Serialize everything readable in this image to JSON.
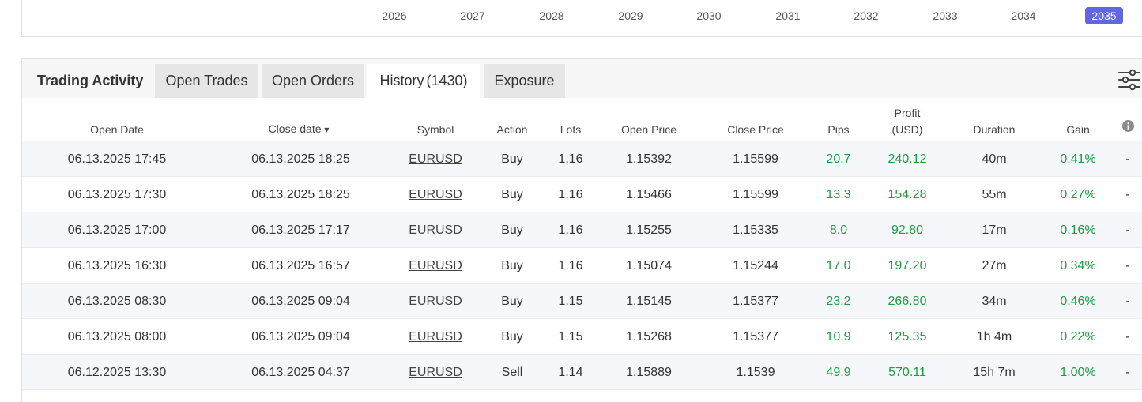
{
  "years": [
    "2026",
    "2027",
    "2028",
    "2029",
    "2030",
    "2031",
    "2032",
    "2033",
    "2034",
    "2035"
  ],
  "active_year": "2035",
  "panel": {
    "title": "Trading Activity",
    "tabs": [
      {
        "label": "Open Trades",
        "count": ""
      },
      {
        "label": "Open Orders",
        "count": ""
      },
      {
        "label": "History",
        "count": "(1430)"
      },
      {
        "label": "Exposure",
        "count": ""
      }
    ],
    "active_tab": "History"
  },
  "table": {
    "headers": {
      "open_date": "Open Date",
      "close_date": "Close date",
      "sort_arrow": "▾",
      "symbol": "Symbol",
      "action": "Action",
      "lots": "Lots",
      "open_price": "Open Price",
      "close_price": "Close Price",
      "pips": "Pips",
      "profit_line1": "Profit",
      "profit_line2": "(USD)",
      "duration": "Duration",
      "gain": "Gain"
    },
    "rows": [
      {
        "open_date": "06.13.2025 17:45",
        "close_date": "06.13.2025 18:25",
        "symbol": "EURUSD",
        "action": "Buy",
        "lots": "1.16",
        "open_price": "1.15392",
        "close_price": "1.15599",
        "pips": "20.7",
        "profit": "240.12",
        "duration": "40m",
        "gain": "0.41%",
        "extra": "-"
      },
      {
        "open_date": "06.13.2025 17:30",
        "close_date": "06.13.2025 18:25",
        "symbol": "EURUSD",
        "action": "Buy",
        "lots": "1.16",
        "open_price": "1.15466",
        "close_price": "1.15599",
        "pips": "13.3",
        "profit": "154.28",
        "duration": "55m",
        "gain": "0.27%",
        "extra": "-"
      },
      {
        "open_date": "06.13.2025 17:00",
        "close_date": "06.13.2025 17:17",
        "symbol": "EURUSD",
        "action": "Buy",
        "lots": "1.16",
        "open_price": "1.15255",
        "close_price": "1.15335",
        "pips": "8.0",
        "profit": "92.80",
        "duration": "17m",
        "gain": "0.16%",
        "extra": "-"
      },
      {
        "open_date": "06.13.2025 16:30",
        "close_date": "06.13.2025 16:57",
        "symbol": "EURUSD",
        "action": "Buy",
        "lots": "1.16",
        "open_price": "1.15074",
        "close_price": "1.15244",
        "pips": "17.0",
        "profit": "197.20",
        "duration": "27m",
        "gain": "0.34%",
        "extra": "-"
      },
      {
        "open_date": "06.13.2025 08:30",
        "close_date": "06.13.2025 09:04",
        "symbol": "EURUSD",
        "action": "Buy",
        "lots": "1.15",
        "open_price": "1.15145",
        "close_price": "1.15377",
        "pips": "23.2",
        "profit": "266.80",
        "duration": "34m",
        "gain": "0.46%",
        "extra": "-"
      },
      {
        "open_date": "06.13.2025 08:00",
        "close_date": "06.13.2025 09:04",
        "symbol": "EURUSD",
        "action": "Buy",
        "lots": "1.15",
        "open_price": "1.15268",
        "close_price": "1.15377",
        "pips": "10.9",
        "profit": "125.35",
        "duration": "1h 4m",
        "gain": "0.22%",
        "extra": "-"
      },
      {
        "open_date": "06.12.2025 13:30",
        "close_date": "06.13.2025 04:37",
        "symbol": "EURUSD",
        "action": "Sell",
        "lots": "1.14",
        "open_price": "1.15889",
        "close_price": "1.1539",
        "pips": "49.9",
        "profit": "570.11",
        "duration": "15h 7m",
        "gain": "1.00%",
        "extra": "-"
      }
    ]
  },
  "colors": {
    "accent": "#6266e0",
    "positive": "#1a9e3f"
  },
  "icons": {
    "settings": "sliders-icon",
    "info": "info-icon"
  }
}
